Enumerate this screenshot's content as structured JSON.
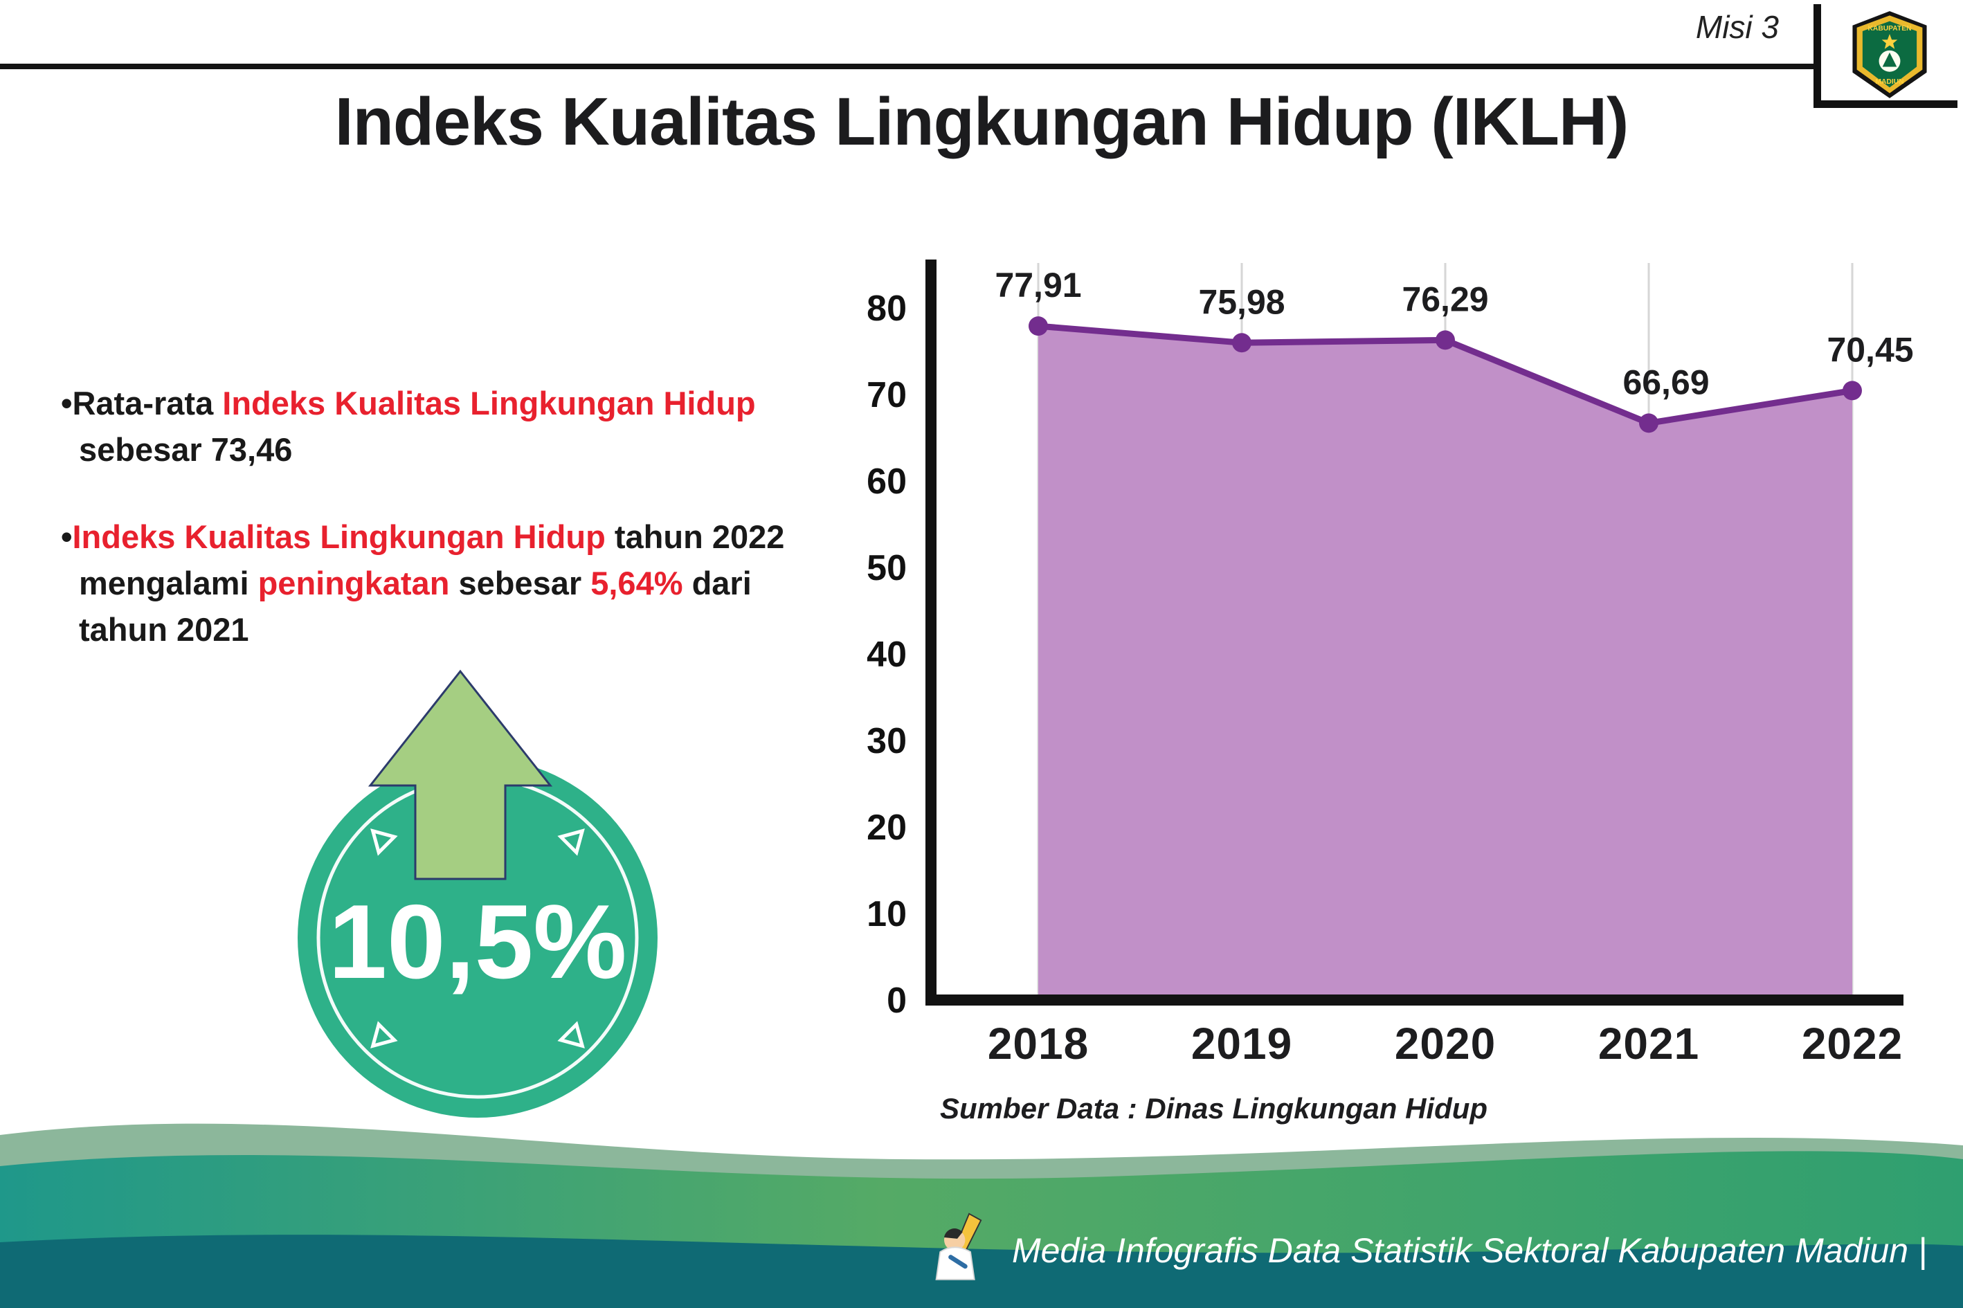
{
  "header": {
    "misi": "Misi 3",
    "title": "Indeks Kualitas Lingkungan Hidup (IKLH)"
  },
  "logo": {
    "line1": "KABUPATEN",
    "line2": "MADIUN"
  },
  "bullets": {
    "glyph": "•",
    "b1p1": "Rata-rata ",
    "b1p2": "Indeks Kualitas Lingkungan Hidup",
    "b1p3": " sebesar 73,46",
    "b2p1": "Indeks Kualitas Lingkungan Hidup",
    "b2p2": " tahun 2022 mengalami ",
    "b2p3": "peningkatan",
    "b2p4": " sebesar ",
    "b2p5": "5,64%",
    "b2p6": " dari tahun 2021"
  },
  "badge": {
    "value": "10,5%"
  },
  "chart_data": {
    "type": "area",
    "title": "Indeks Kualitas Lingkungan Hidup (IKLH)",
    "categories": [
      "2018",
      "2019",
      "2020",
      "2021",
      "2022"
    ],
    "values": [
      77.91,
      75.98,
      76.29,
      66.69,
      70.45
    ],
    "value_labels": [
      "77,91",
      "75,98",
      "76,29",
      "66,69",
      "70,45"
    ],
    "ylim": [
      0,
      80
    ],
    "yticks": [
      0,
      10,
      20,
      30,
      40,
      50,
      60,
      70,
      80
    ],
    "grid": "vertical-light",
    "legend": "none",
    "source": "Sumber Data : Dinas Lingkungan Hidup",
    "colors": {
      "fill": "#c190c8",
      "line": "#732d8e",
      "marker": "#732d8e",
      "axis": "#121212",
      "grid": "#d6d6d6",
      "label": "#1d1d1f"
    }
  },
  "footer": {
    "credit": "Media Infografis Data Statistik Sektoral Kabupaten Madiun |"
  }
}
